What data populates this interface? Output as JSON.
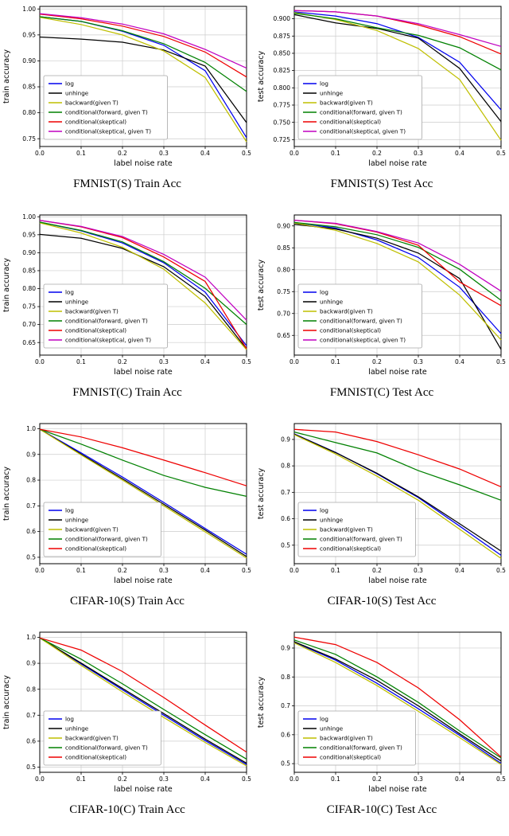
{
  "page": {
    "background": "#ffffff",
    "description_layout": "4x2 grid of line charts"
  },
  "chart_data": [
    {
      "type": "line",
      "title": "FMNIST(S) Train Acc",
      "xlabel": "label noise rate",
      "ylabel": "train accuracy",
      "grid": true,
      "legend_position": "lower left",
      "xlim": [
        0.0,
        0.5
      ],
      "ylim": [
        0.735,
        1.005
      ],
      "x": [
        0.0,
        0.1,
        0.2,
        0.3,
        0.4,
        0.5
      ],
      "xtick_labels": [
        "0.0",
        "0.1",
        "0.2",
        "0.3",
        "0.4",
        "0.5"
      ],
      "ytick_values": [
        0.75,
        0.8,
        0.85,
        0.9,
        0.95,
        1.0
      ],
      "ytick_labels": [
        "0.75",
        "0.80",
        "0.85",
        "0.90",
        "0.95",
        "1.00"
      ],
      "series": [
        {
          "name": "log",
          "color": "#0000ee",
          "values": [
            0.985,
            0.976,
            0.957,
            0.93,
            0.881,
            0.752
          ]
        },
        {
          "name": "unhinge",
          "color": "#000000",
          "values": [
            0.946,
            0.942,
            0.936,
            0.921,
            0.89,
            0.781
          ]
        },
        {
          "name": "backward(given T)",
          "color": "#bfbf00",
          "values": [
            0.984,
            0.97,
            0.95,
            0.919,
            0.868,
            0.744
          ]
        },
        {
          "name": "conditional(forward, given T)",
          "color": "#008000",
          "values": [
            0.985,
            0.976,
            0.958,
            0.933,
            0.897,
            0.841
          ]
        },
        {
          "name": "conditional(skeptical)",
          "color": "#ee0000",
          "values": [
            0.99,
            0.981,
            0.967,
            0.947,
            0.917,
            0.869
          ]
        },
        {
          "name": "conditional(skeptical, given T)",
          "color": "#c000c0",
          "values": [
            0.991,
            0.983,
            0.971,
            0.952,
            0.922,
            0.886
          ]
        }
      ]
    },
    {
      "type": "line",
      "title": "FMNIST(S) Test Acc",
      "xlabel": "label noise rate",
      "ylabel": "test accuracy",
      "grid": true,
      "legend_position": "lower left",
      "xlim": [
        0.0,
        0.5
      ],
      "ylim": [
        0.715,
        0.918
      ],
      "x": [
        0.0,
        0.1,
        0.2,
        0.3,
        0.4,
        0.5
      ],
      "xtick_labels": [
        "0.0",
        "0.1",
        "0.2",
        "0.3",
        "0.4",
        "0.5"
      ],
      "ytick_values": [
        0.725,
        0.75,
        0.775,
        0.8,
        0.825,
        0.85,
        0.875,
        0.9
      ],
      "ytick_labels": [
        "0.725",
        "0.750",
        "0.775",
        "0.800",
        "0.825",
        "0.850",
        "0.875",
        "0.900"
      ],
      "series": [
        {
          "name": "log",
          "color": "#0000ee",
          "values": [
            0.91,
            0.904,
            0.893,
            0.873,
            0.837,
            0.768
          ]
        },
        {
          "name": "unhinge",
          "color": "#000000",
          "values": [
            0.906,
            0.894,
            0.886,
            0.872,
            0.828,
            0.751
          ]
        },
        {
          "name": "backward(given T)",
          "color": "#bfbf00",
          "values": [
            0.909,
            0.899,
            0.883,
            0.857,
            0.812,
            0.724
          ]
        },
        {
          "name": "conditional(forward, given T)",
          "color": "#008000",
          "values": [
            0.908,
            0.9,
            0.887,
            0.876,
            0.858,
            0.826
          ]
        },
        {
          "name": "conditional(skeptical)",
          "color": "#ee0000",
          "values": [
            0.912,
            0.91,
            0.904,
            0.891,
            0.874,
            0.849
          ]
        },
        {
          "name": "conditional(skeptical, given T)",
          "color": "#c000c0",
          "values": [
            0.912,
            0.91,
            0.904,
            0.893,
            0.877,
            0.86
          ]
        }
      ]
    },
    {
      "type": "line",
      "title": "FMNIST(C) Train Acc",
      "xlabel": "label noise rate",
      "ylabel": "train accuracy",
      "grid": true,
      "legend_position": "lower left",
      "xlim": [
        0.0,
        0.5
      ],
      "ylim": [
        0.615,
        1.005
      ],
      "x": [
        0.0,
        0.1,
        0.2,
        0.3,
        0.4,
        0.5
      ],
      "xtick_labels": [
        "0.0",
        "0.1",
        "0.2",
        "0.3",
        "0.4",
        "0.5"
      ],
      "ytick_values": [
        0.65,
        0.7,
        0.75,
        0.8,
        0.85,
        0.9,
        0.95,
        1.0
      ],
      "ytick_labels": [
        "0.65",
        "0.70",
        "0.75",
        "0.80",
        "0.85",
        "0.90",
        "0.95",
        "1.00"
      ],
      "series": [
        {
          "name": "log",
          "color": "#0000ee",
          "values": [
            0.985,
            0.961,
            0.927,
            0.872,
            0.79,
            0.641
          ]
        },
        {
          "name": "unhinge",
          "color": "#000000",
          "values": [
            0.951,
            0.94,
            0.912,
            0.861,
            0.778,
            0.632
          ]
        },
        {
          "name": "backward(given T)",
          "color": "#bfbf00",
          "values": [
            0.983,
            0.955,
            0.915,
            0.854,
            0.76,
            0.63
          ]
        },
        {
          "name": "conditional(forward, given T)",
          "color": "#008000",
          "values": [
            0.985,
            0.962,
            0.93,
            0.875,
            0.801,
            0.7
          ]
        },
        {
          "name": "conditional(skeptical)",
          "color": "#ee0000",
          "values": [
            0.99,
            0.972,
            0.942,
            0.888,
            0.82,
            0.633
          ]
        },
        {
          "name": "conditional(skeptical, given T)",
          "color": "#c000c0",
          "values": [
            0.99,
            0.973,
            0.945,
            0.895,
            0.832,
            0.712
          ]
        }
      ]
    },
    {
      "type": "line",
      "title": "FMNIST(C) Test Acc",
      "xlabel": "label noise rate",
      "ylabel": "test accuracy",
      "grid": true,
      "legend_position": "lower left",
      "xlim": [
        0.0,
        0.5
      ],
      "ylim": [
        0.605,
        0.925
      ],
      "x": [
        0.0,
        0.1,
        0.2,
        0.3,
        0.4,
        0.5
      ],
      "xtick_labels": [
        "0.0",
        "0.1",
        "0.2",
        "0.3",
        "0.4",
        "0.5"
      ],
      "ytick_values": [
        0.65,
        0.7,
        0.75,
        0.8,
        0.85,
        0.9
      ],
      "ytick_labels": [
        "0.65",
        "0.70",
        "0.75",
        "0.80",
        "0.85",
        "0.90"
      ],
      "series": [
        {
          "name": "log",
          "color": "#0000ee",
          "values": [
            0.908,
            0.895,
            0.868,
            0.828,
            0.76,
            0.654
          ]
        },
        {
          "name": "unhinge",
          "color": "#000000",
          "values": [
            0.904,
            0.893,
            0.872,
            0.838,
            0.78,
            0.618
          ]
        },
        {
          "name": "backward(given T)",
          "color": "#bfbf00",
          "values": [
            0.907,
            0.89,
            0.86,
            0.818,
            0.742,
            0.64
          ]
        },
        {
          "name": "conditional(forward, given T)",
          "color": "#008000",
          "values": [
            0.908,
            0.898,
            0.88,
            0.851,
            0.801,
            0.73
          ]
        },
        {
          "name": "conditional(skeptical)",
          "color": "#ee0000",
          "values": [
            0.913,
            0.905,
            0.886,
            0.856,
            0.772,
            0.718
          ]
        },
        {
          "name": "conditional(skeptical, given T)",
          "color": "#c000c0",
          "values": [
            0.913,
            0.906,
            0.887,
            0.861,
            0.812,
            0.751
          ]
        }
      ]
    },
    {
      "type": "line",
      "title": "CIFAR-10(S) Train Acc",
      "xlabel": "label noise rate",
      "ylabel": "train accuracy",
      "grid": true,
      "legend_position": "lower left",
      "xlim": [
        0.0,
        0.5
      ],
      "ylim": [
        0.475,
        1.02
      ],
      "x": [
        0.0,
        0.1,
        0.2,
        0.3,
        0.4,
        0.5
      ],
      "xtick_labels": [
        "0.0",
        "0.1",
        "0.2",
        "0.3",
        "0.4",
        "0.5"
      ],
      "ytick_values": [
        0.5,
        0.6,
        0.7,
        0.8,
        0.9,
        1.0
      ],
      "ytick_labels": [
        "0.5",
        "0.6",
        "0.7",
        "0.8",
        "0.9",
        "1.0"
      ],
      "series": [
        {
          "name": "log",
          "color": "#0000ee",
          "values": [
            0.998,
            0.906,
            0.812,
            0.713,
            0.612,
            0.512
          ]
        },
        {
          "name": "unhinge",
          "color": "#000000",
          "values": [
            0.998,
            0.901,
            0.805,
            0.706,
            0.606,
            0.503
          ]
        },
        {
          "name": "backward(given T)",
          "color": "#bfbf00",
          "values": [
            0.998,
            0.898,
            0.8,
            0.7,
            0.599,
            0.497
          ]
        },
        {
          "name": "conditional(forward, given T)",
          "color": "#008000",
          "values": [
            0.998,
            0.94,
            0.878,
            0.818,
            0.772,
            0.737
          ]
        },
        {
          "name": "conditional(skeptical)",
          "color": "#ee0000",
          "values": [
            0.998,
            0.968,
            0.926,
            0.878,
            0.829,
            0.778
          ]
        }
      ]
    },
    {
      "type": "line",
      "title": "CIFAR-10(S) Test Acc",
      "xlabel": "label noise rate",
      "ylabel": "test accuracy",
      "grid": true,
      "legend_position": "lower left",
      "xlim": [
        0.0,
        0.5
      ],
      "ylim": [
        0.43,
        0.96
      ],
      "x": [
        0.0,
        0.1,
        0.2,
        0.3,
        0.4,
        0.5
      ],
      "xtick_labels": [
        "0.0",
        "0.1",
        "0.2",
        "0.3",
        "0.4",
        "0.5"
      ],
      "ytick_values": [
        0.5,
        0.6,
        0.7,
        0.8,
        0.9
      ],
      "ytick_labels": [
        "0.5",
        "0.6",
        "0.7",
        "0.8",
        "0.9"
      ],
      "series": [
        {
          "name": "log",
          "color": "#0000ee",
          "values": [
            0.921,
            0.851,
            0.77,
            0.68,
            0.572,
            0.462
          ]
        },
        {
          "name": "unhinge",
          "color": "#000000",
          "values": [
            0.92,
            0.85,
            0.772,
            0.683,
            0.581,
            0.478
          ]
        },
        {
          "name": "backward(given T)",
          "color": "#bfbf00",
          "values": [
            0.918,
            0.845,
            0.761,
            0.67,
            0.56,
            0.45
          ]
        },
        {
          "name": "conditional(forward, given T)",
          "color": "#008000",
          "values": [
            0.928,
            0.888,
            0.849,
            0.782,
            0.728,
            0.67
          ]
        },
        {
          "name": "conditional(skeptical)",
          "color": "#ee0000",
          "values": [
            0.938,
            0.928,
            0.892,
            0.842,
            0.788,
            0.721
          ]
        }
      ]
    },
    {
      "type": "line",
      "title": "CIFAR-10(C) Train Acc",
      "xlabel": "label noise rate",
      "ylabel": "train accuracy",
      "grid": true,
      "legend_position": "lower left",
      "xlim": [
        0.0,
        0.5
      ],
      "ylim": [
        0.48,
        1.02
      ],
      "x": [
        0.0,
        0.1,
        0.2,
        0.3,
        0.4,
        0.5
      ],
      "xtick_labels": [
        "0.0",
        "0.1",
        "0.2",
        "0.3",
        "0.4",
        "0.5"
      ],
      "ytick_values": [
        0.5,
        0.6,
        0.7,
        0.8,
        0.9,
        1.0
      ],
      "ytick_labels": [
        "0.5",
        "0.6",
        "0.7",
        "0.8",
        "0.9",
        "1.0"
      ],
      "series": [
        {
          "name": "log",
          "color": "#0000ee",
          "values": [
            0.998,
            0.898,
            0.798,
            0.7,
            0.602,
            0.51
          ]
        },
        {
          "name": "unhinge",
          "color": "#000000",
          "values": [
            0.998,
            0.901,
            0.803,
            0.706,
            0.608,
            0.515
          ]
        },
        {
          "name": "backward(given T)",
          "color": "#bfbf00",
          "values": [
            0.998,
            0.892,
            0.79,
            0.691,
            0.595,
            0.505
          ]
        },
        {
          "name": "conditional(forward, given T)",
          "color": "#008000",
          "values": [
            0.998,
            0.916,
            0.821,
            0.722,
            0.625,
            0.531
          ]
        },
        {
          "name": "conditional(skeptical)",
          "color": "#ee0000",
          "values": [
            0.998,
            0.951,
            0.868,
            0.768,
            0.662,
            0.558
          ]
        }
      ]
    },
    {
      "type": "line",
      "title": "CIFAR-10(C) Test Acc",
      "xlabel": "label noise rate",
      "ylabel": "test accuracy",
      "grid": true,
      "legend_position": "lower left",
      "xlim": [
        0.0,
        0.5
      ],
      "ylim": [
        0.47,
        0.955
      ],
      "x": [
        0.0,
        0.1,
        0.2,
        0.3,
        0.4,
        0.5
      ],
      "xtick_labels": [
        "0.0",
        "0.1",
        "0.2",
        "0.3",
        "0.4",
        "0.5"
      ],
      "ytick_values": [
        0.5,
        0.6,
        0.7,
        0.8,
        0.9
      ],
      "ytick_labels": [
        "0.5",
        "0.6",
        "0.7",
        "0.8",
        "0.9"
      ],
      "series": [
        {
          "name": "log",
          "color": "#0000ee",
          "values": [
            0.92,
            0.858,
            0.778,
            0.69,
            0.598,
            0.501
          ]
        },
        {
          "name": "unhinge",
          "color": "#000000",
          "values": [
            0.922,
            0.862,
            0.788,
            0.7,
            0.603,
            0.509
          ]
        },
        {
          "name": "backward(given T)",
          "color": "#bfbf00",
          "values": [
            0.918,
            0.85,
            0.77,
            0.681,
            0.59,
            0.497
          ]
        },
        {
          "name": "conditional(forward, given T)",
          "color": "#008000",
          "values": [
            0.928,
            0.878,
            0.8,
            0.712,
            0.613,
            0.52
          ]
        },
        {
          "name": "conditional(skeptical)",
          "color": "#ee0000",
          "values": [
            0.938,
            0.912,
            0.85,
            0.762,
            0.652,
            0.523
          ]
        }
      ]
    }
  ]
}
